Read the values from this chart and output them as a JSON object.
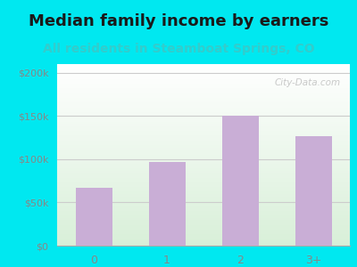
{
  "title": "Median family income by earners",
  "subtitle": "All residents in Steamboat Springs, CO",
  "categories": [
    "0",
    "1",
    "2",
    "3+"
  ],
  "values": [
    67000,
    97000,
    150000,
    127000
  ],
  "bar_color": "#c9aed6",
  "title_fontsize": 13,
  "subtitle_fontsize": 10,
  "subtitle_color": "#33cccc",
  "title_color": "#1a1a1a",
  "background_outer": "#00e8f0",
  "ylim": [
    0,
    210000
  ],
  "yticks": [
    0,
    50000,
    100000,
    150000,
    200000
  ],
  "ytick_labels": [
    "$0",
    "$50k",
    "$100k",
    "$150k",
    "$200k"
  ],
  "watermark": "City-Data.com",
  "tick_color": "#888888",
  "grid_color": "#cccccc"
}
